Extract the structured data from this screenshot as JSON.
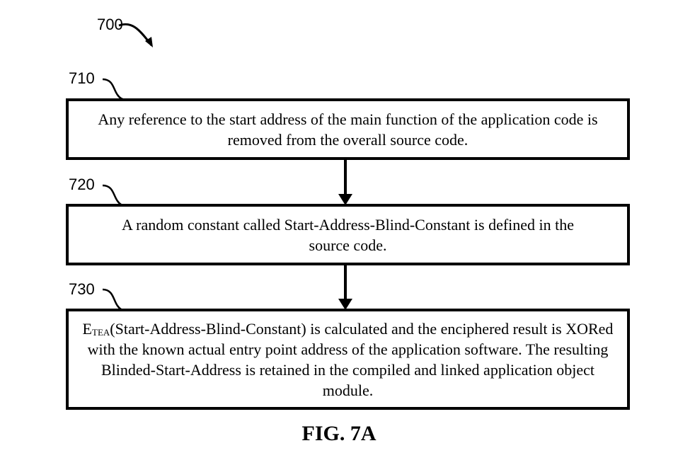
{
  "figure": {
    "ref_label": "700",
    "caption": "FIG. 7A"
  },
  "steps": [
    {
      "ref": "710",
      "text": "Any reference to the start address of the main function of the application code is removed from the overall source code."
    },
    {
      "ref": "720",
      "text": "A random constant called Start-Address-Blind-Constant is defined in the source code."
    },
    {
      "ref": "730",
      "text_prefix": "E",
      "text_subscript": "TEA",
      "text": "(Start-Address-Blind-Constant) is calculated and the enciphered result is XORed with the known actual entry point address of the application software. The resulting Blinded-Start-Address is retained in the compiled and linked application object module."
    }
  ]
}
